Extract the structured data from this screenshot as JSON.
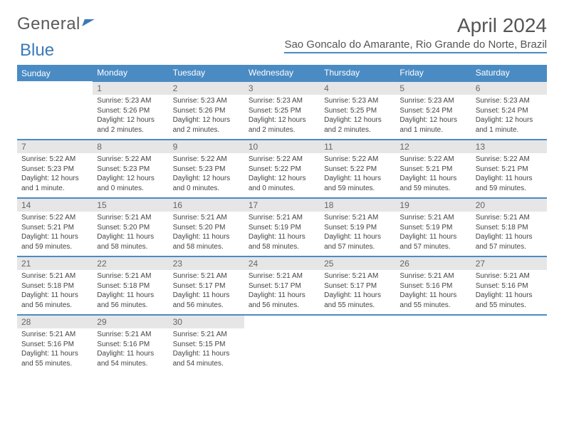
{
  "logo": {
    "word1": "General",
    "word2": "Blue"
  },
  "title": "April 2024",
  "location": "Sao Goncalo do Amarante, Rio Grande do Norte, Brazil",
  "colors": {
    "header_bg": "#4a8bc4",
    "header_text": "#ffffff",
    "daynum_bg": "#e6e6e6",
    "row_border": "#4a8bc4",
    "logo_blue": "#3a7ab8"
  },
  "weekdays": [
    "Sunday",
    "Monday",
    "Tuesday",
    "Wednesday",
    "Thursday",
    "Friday",
    "Saturday"
  ],
  "weeks": [
    [
      {
        "n": "",
        "sr": "",
        "ss": "",
        "dl": ""
      },
      {
        "n": "1",
        "sr": "Sunrise: 5:23 AM",
        "ss": "Sunset: 5:26 PM",
        "dl": "Daylight: 12 hours and 2 minutes."
      },
      {
        "n": "2",
        "sr": "Sunrise: 5:23 AM",
        "ss": "Sunset: 5:26 PM",
        "dl": "Daylight: 12 hours and 2 minutes."
      },
      {
        "n": "3",
        "sr": "Sunrise: 5:23 AM",
        "ss": "Sunset: 5:25 PM",
        "dl": "Daylight: 12 hours and 2 minutes."
      },
      {
        "n": "4",
        "sr": "Sunrise: 5:23 AM",
        "ss": "Sunset: 5:25 PM",
        "dl": "Daylight: 12 hours and 2 minutes."
      },
      {
        "n": "5",
        "sr": "Sunrise: 5:23 AM",
        "ss": "Sunset: 5:24 PM",
        "dl": "Daylight: 12 hours and 1 minute."
      },
      {
        "n": "6",
        "sr": "Sunrise: 5:23 AM",
        "ss": "Sunset: 5:24 PM",
        "dl": "Daylight: 12 hours and 1 minute."
      }
    ],
    [
      {
        "n": "7",
        "sr": "Sunrise: 5:22 AM",
        "ss": "Sunset: 5:23 PM",
        "dl": "Daylight: 12 hours and 1 minute."
      },
      {
        "n": "8",
        "sr": "Sunrise: 5:22 AM",
        "ss": "Sunset: 5:23 PM",
        "dl": "Daylight: 12 hours and 0 minutes."
      },
      {
        "n": "9",
        "sr": "Sunrise: 5:22 AM",
        "ss": "Sunset: 5:23 PM",
        "dl": "Daylight: 12 hours and 0 minutes."
      },
      {
        "n": "10",
        "sr": "Sunrise: 5:22 AM",
        "ss": "Sunset: 5:22 PM",
        "dl": "Daylight: 12 hours and 0 minutes."
      },
      {
        "n": "11",
        "sr": "Sunrise: 5:22 AM",
        "ss": "Sunset: 5:22 PM",
        "dl": "Daylight: 11 hours and 59 minutes."
      },
      {
        "n": "12",
        "sr": "Sunrise: 5:22 AM",
        "ss": "Sunset: 5:21 PM",
        "dl": "Daylight: 11 hours and 59 minutes."
      },
      {
        "n": "13",
        "sr": "Sunrise: 5:22 AM",
        "ss": "Sunset: 5:21 PM",
        "dl": "Daylight: 11 hours and 59 minutes."
      }
    ],
    [
      {
        "n": "14",
        "sr": "Sunrise: 5:22 AM",
        "ss": "Sunset: 5:21 PM",
        "dl": "Daylight: 11 hours and 59 minutes."
      },
      {
        "n": "15",
        "sr": "Sunrise: 5:21 AM",
        "ss": "Sunset: 5:20 PM",
        "dl": "Daylight: 11 hours and 58 minutes."
      },
      {
        "n": "16",
        "sr": "Sunrise: 5:21 AM",
        "ss": "Sunset: 5:20 PM",
        "dl": "Daylight: 11 hours and 58 minutes."
      },
      {
        "n": "17",
        "sr": "Sunrise: 5:21 AM",
        "ss": "Sunset: 5:19 PM",
        "dl": "Daylight: 11 hours and 58 minutes."
      },
      {
        "n": "18",
        "sr": "Sunrise: 5:21 AM",
        "ss": "Sunset: 5:19 PM",
        "dl": "Daylight: 11 hours and 57 minutes."
      },
      {
        "n": "19",
        "sr": "Sunrise: 5:21 AM",
        "ss": "Sunset: 5:19 PM",
        "dl": "Daylight: 11 hours and 57 minutes."
      },
      {
        "n": "20",
        "sr": "Sunrise: 5:21 AM",
        "ss": "Sunset: 5:18 PM",
        "dl": "Daylight: 11 hours and 57 minutes."
      }
    ],
    [
      {
        "n": "21",
        "sr": "Sunrise: 5:21 AM",
        "ss": "Sunset: 5:18 PM",
        "dl": "Daylight: 11 hours and 56 minutes."
      },
      {
        "n": "22",
        "sr": "Sunrise: 5:21 AM",
        "ss": "Sunset: 5:18 PM",
        "dl": "Daylight: 11 hours and 56 minutes."
      },
      {
        "n": "23",
        "sr": "Sunrise: 5:21 AM",
        "ss": "Sunset: 5:17 PM",
        "dl": "Daylight: 11 hours and 56 minutes."
      },
      {
        "n": "24",
        "sr": "Sunrise: 5:21 AM",
        "ss": "Sunset: 5:17 PM",
        "dl": "Daylight: 11 hours and 56 minutes."
      },
      {
        "n": "25",
        "sr": "Sunrise: 5:21 AM",
        "ss": "Sunset: 5:17 PM",
        "dl": "Daylight: 11 hours and 55 minutes."
      },
      {
        "n": "26",
        "sr": "Sunrise: 5:21 AM",
        "ss": "Sunset: 5:16 PM",
        "dl": "Daylight: 11 hours and 55 minutes."
      },
      {
        "n": "27",
        "sr": "Sunrise: 5:21 AM",
        "ss": "Sunset: 5:16 PM",
        "dl": "Daylight: 11 hours and 55 minutes."
      }
    ],
    [
      {
        "n": "28",
        "sr": "Sunrise: 5:21 AM",
        "ss": "Sunset: 5:16 PM",
        "dl": "Daylight: 11 hours and 55 minutes."
      },
      {
        "n": "29",
        "sr": "Sunrise: 5:21 AM",
        "ss": "Sunset: 5:16 PM",
        "dl": "Daylight: 11 hours and 54 minutes."
      },
      {
        "n": "30",
        "sr": "Sunrise: 5:21 AM",
        "ss": "Sunset: 5:15 PM",
        "dl": "Daylight: 11 hours and 54 minutes."
      },
      {
        "n": "",
        "sr": "",
        "ss": "",
        "dl": ""
      },
      {
        "n": "",
        "sr": "",
        "ss": "",
        "dl": ""
      },
      {
        "n": "",
        "sr": "",
        "ss": "",
        "dl": ""
      },
      {
        "n": "",
        "sr": "",
        "ss": "",
        "dl": ""
      }
    ]
  ]
}
